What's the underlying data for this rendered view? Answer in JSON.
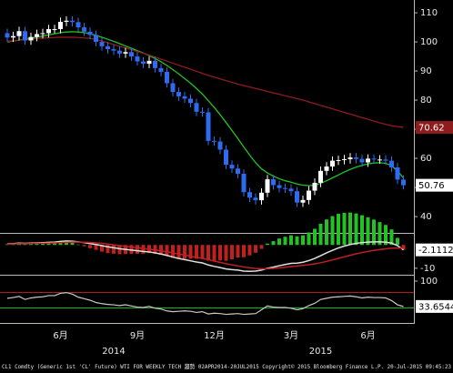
{
  "chart_data": [
    {
      "type": "candlestick",
      "categories": [
        null,
        null,
        null,
        null,
        null,
        null,
        null,
        null,
        null,
        "6月",
        null,
        null,
        null,
        null,
        null,
        null,
        null,
        null,
        null,
        null,
        null,
        null,
        "9月",
        null,
        null,
        null,
        null,
        null,
        null,
        null,
        null,
        null,
        null,
        null,
        null,
        "12月",
        null,
        null,
        null,
        null,
        null,
        null,
        null,
        null,
        null,
        null,
        null,
        null,
        "3月",
        null,
        null,
        null,
        null,
        null,
        null,
        null,
        null,
        null,
        null,
        null,
        null,
        "6月",
        null,
        null,
        null,
        null,
        null,
        null
      ],
      "categories2": [
        null,
        null,
        null,
        null,
        null,
        null,
        null,
        null,
        null,
        null,
        null,
        null,
        null,
        null,
        null,
        null,
        null,
        null,
        "2014",
        null,
        null,
        null,
        null,
        null,
        null,
        null,
        null,
        null,
        null,
        null,
        null,
        null,
        null,
        null,
        null,
        null,
        null,
        null,
        null,
        null,
        null,
        null,
        null,
        null,
        null,
        null,
        null,
        null,
        null,
        null,
        null,
        null,
        null,
        "2015",
        null,
        null,
        null,
        null,
        null,
        null,
        null,
        null,
        null,
        null,
        null,
        null,
        null,
        null
      ],
      "open": [
        103,
        101.5,
        102,
        103.7,
        100.5,
        101.7,
        102.7,
        103,
        104.4,
        104.4,
        106.9,
        107.3,
        106.8,
        105,
        103.5,
        102.4,
        100,
        98.5,
        97.5,
        97,
        96,
        96.5,
        95,
        93.3,
        92.5,
        93.5,
        91,
        89.7,
        85.8,
        82.8,
        81.3,
        80.5,
        79,
        76,
        75.8,
        66,
        65.8,
        63,
        57.8,
        56.5,
        54.7,
        48.4,
        46.5,
        45.6,
        48.2,
        52.8,
        50.8,
        49.8,
        49.6,
        48.7,
        44.8,
        45.7,
        48.9,
        51.6,
        55.7,
        57.2,
        59.2,
        59.4,
        59.7,
        60.3,
        59.8,
        58.6,
        59.9,
        59.6,
        59.6,
        59.2,
        56.9,
        52.7
      ],
      "high": [
        104.5,
        103.5,
        105.2,
        105.2,
        103.2,
        104.2,
        104.5,
        105.9,
        105.9,
        108.4,
        108.8,
        108.8,
        108.3,
        106.5,
        105,
        103.9,
        101.5,
        100,
        99,
        98.5,
        98,
        98,
        96.5,
        94.8,
        95,
        95,
        92.5,
        91.2,
        87.3,
        84.3,
        82.8,
        82,
        80.5,
        77.5,
        77.3,
        67.5,
        67.3,
        64.5,
        59.3,
        58,
        56.2,
        49.9,
        48,
        49.7,
        54.3,
        54.3,
        52.3,
        51.3,
        51.1,
        50.2,
        47.2,
        50.4,
        53.1,
        57.2,
        58.7,
        60.7,
        60.9,
        61.2,
        61.8,
        61.8,
        61.3,
        61.4,
        61.4,
        61.1,
        61.1,
        60.7,
        58.4,
        54.2
      ],
      "low": [
        100,
        100,
        100.5,
        99,
        99,
        100.2,
        101.2,
        101.5,
        102.9,
        102.9,
        105.4,
        105.3,
        103.5,
        102,
        100.9,
        98.5,
        97,
        96,
        95.5,
        94.5,
        94.5,
        93.5,
        91.8,
        91,
        91,
        89.5,
        88.2,
        84.3,
        81.3,
        79.8,
        79,
        77.5,
        74.5,
        74.3,
        64.5,
        64.3,
        61.5,
        56.3,
        55,
        53.2,
        46.9,
        45,
        44.1,
        44.1,
        46.7,
        49.3,
        48.3,
        48.1,
        47.2,
        43.3,
        43.3,
        44.2,
        47.4,
        50.1,
        54.2,
        55.7,
        57.7,
        57.9,
        58.2,
        58.3,
        57.1,
        57.1,
        58.1,
        58.1,
        57.7,
        55.4,
        51.2,
        49.3
      ],
      "close": [
        101.5,
        102,
        103.7,
        100.5,
        101.7,
        102.7,
        103,
        104.4,
        104.4,
        106.9,
        107.3,
        106.8,
        105,
        103.5,
        102.4,
        100,
        98.5,
        97.5,
        97,
        96,
        96.5,
        95,
        93.3,
        92.5,
        93.5,
        91,
        89.7,
        85.8,
        82.8,
        81.3,
        80.5,
        79,
        76,
        75.8,
        66,
        65.8,
        63,
        57.8,
        56.5,
        54.7,
        48.4,
        46.5,
        45.6,
        48.2,
        52.8,
        50.8,
        49.8,
        49.6,
        48.7,
        44.8,
        45.7,
        48.9,
        51.6,
        55.7,
        57.2,
        59.2,
        59.4,
        59.7,
        60.3,
        59.8,
        58.6,
        59.9,
        59.6,
        59.6,
        59.2,
        56.9,
        52.7,
        50.76
      ],
      "up_color": "#ffffff",
      "down_color": "#2b6cf0",
      "series": [
        {
          "color": "#22c322",
          "values": [
            100,
            100.3,
            100.6,
            101,
            101.3,
            101.7,
            102,
            102.4,
            102.8,
            103.2,
            103.4,
            103.5,
            103.4,
            103.2,
            102.8,
            102.3,
            101.6,
            100.9,
            100.2,
            99.4,
            98.6,
            97.8,
            97,
            96.2,
            95.3,
            94.3,
            93.2,
            91.9,
            90.5,
            89,
            87.4,
            85.8,
            84,
            82.1,
            79.8,
            77.5,
            75,
            72.3,
            69.6,
            66.8,
            63.9,
            61.1,
            58.5,
            56.4,
            55,
            53.9,
            53,
            52.3,
            51.8,
            51.2,
            50.8,
            50.6,
            50.8,
            51.4,
            52.3,
            53.3,
            54.3,
            55.3,
            56.2,
            57,
            57.6,
            58.1,
            58.4,
            58.5,
            58.3,
            57.5,
            55.6,
            53.3
          ]
        },
        {
          "color": "#8e1c1c",
          "values": [
            100.2,
            100.4,
            100.6,
            100.8,
            101,
            101.2,
            101.3,
            101.4,
            101.5,
            101.6,
            101.6,
            101.6,
            101.5,
            101.4,
            101.2,
            100.8,
            100.3,
            99.7,
            99.1,
            98.5,
            97.9,
            97.3,
            96.7,
            96.1,
            95.5,
            94.8,
            94.1,
            93.4,
            92.7,
            92,
            91.3,
            90.6,
            89.9,
            89.2,
            88.5,
            87.9,
            87.3,
            86.7,
            86.1,
            85.5,
            85,
            84.5,
            84,
            83.5,
            83,
            82.5,
            82,
            81.5,
            81,
            80.5,
            80,
            79.4,
            78.8,
            78.2,
            77.6,
            77,
            76.4,
            75.8,
            75.2,
            74.6,
            74,
            73.4,
            72.8,
            72.2,
            71.7,
            71.2,
            70.9,
            70.62
          ]
        }
      ],
      "ylim": [
        34.7,
        114.4
      ],
      "yticks": [
        40,
        50,
        60,
        70,
        80,
        90,
        100,
        110
      ]
    },
    {
      "type": "macd",
      "series": [
        {
          "color": "#e0e0e0",
          "values": [
            0.5,
            0.6,
            0.8,
            0.7,
            0.8,
            0.9,
            1,
            1.1,
            1.2,
            1.5,
            1.7,
            1.6,
            1.3,
            1,
            0.6,
            0.2,
            -0.3,
            -0.8,
            -1.2,
            -1.6,
            -1.9,
            -2.2,
            -2.5,
            -2.8,
            -3,
            -3.4,
            -3.9,
            -4.5,
            -5.2,
            -5.8,
            -6.3,
            -6.8,
            -7.3,
            -7.7,
            -8.6,
            -9.2,
            -9.7,
            -10.3,
            -10.6,
            -10.8,
            -11.2,
            -11.3,
            -11.2,
            -10.8,
            -10,
            -9.5,
            -8.9,
            -8.4,
            -7.9,
            -7.8,
            -7.4,
            -6.7,
            -5.8,
            -4.6,
            -3.4,
            -2.3,
            -1.3,
            -0.5,
            0.2,
            0.7,
            1,
            1.2,
            1.3,
            1.3,
            1.2,
            0.8,
            -0.3,
            -2.1112
          ]
        },
        {
          "color": "#c02020",
          "values": [
            0.4,
            0.45,
            0.52,
            0.56,
            0.6,
            0.66,
            0.73,
            0.8,
            0.88,
            1,
            1.14,
            1.23,
            1.24,
            1.19,
            1.07,
            0.9,
            0.66,
            0.37,
            0.05,
            -0.28,
            -0.6,
            -0.92,
            -1.24,
            -1.55,
            -1.84,
            -2.15,
            -2.5,
            -2.9,
            -3.36,
            -3.84,
            -4.33,
            -4.82,
            -5.32,
            -5.79,
            -6.35,
            -6.92,
            -7.48,
            -8.04,
            -8.55,
            -9,
            -9.44,
            -9.81,
            -10.09,
            -10.24,
            -10.19,
            -10.04,
            -9.82,
            -9.57,
            -9.29,
            -9.03,
            -8.78,
            -8.49,
            -8.11,
            -7.63,
            -7.05,
            -6.42,
            -5.75,
            -5.1,
            -4.44,
            -3.81,
            -3.25,
            -2.76,
            -2.33,
            -1.97,
            -1.66,
            -1.42,
            -1.31,
            -1.4
          ]
        }
      ],
      "up_color": "#22c322",
      "down_color": "#c02020",
      "ylim": [
        -12,
        4
      ],
      "yticks": [
        -10
      ]
    },
    {
      "type": "rsi",
      "series": [
        {
          "color": "#c8c8c8",
          "values": [
            55,
            57,
            60,
            52,
            56,
            58,
            59,
            62,
            62,
            68,
            70,
            66,
            58,
            54,
            50,
            44,
            41,
            39,
            38,
            36,
            38,
            35,
            32,
            31,
            34,
            29,
            27,
            22,
            20,
            21,
            22,
            21,
            18,
            20,
            14,
            16,
            15,
            13,
            14,
            15,
            13,
            14,
            15,
            25,
            35,
            32,
            31,
            31,
            29,
            25,
            28,
            36,
            42,
            52,
            55,
            58,
            59,
            60,
            61,
            59,
            56,
            58,
            57,
            57,
            56,
            49,
            38,
            33.6544
          ]
        }
      ],
      "levels": [
        {
          "value": 70,
          "color": "#c02020"
        },
        {
          "value": 30,
          "color": "#22c322"
        }
      ],
      "ylim": [
        0,
        100
      ],
      "yticks": [
        100
      ]
    }
  ],
  "footer": "CL1 Comdty (Generic 1st 'CL' Future) WTI FOR WEEKLY TECH 趨勢 02APR2014-20JUL2015 Copyright© 2015 Bloomberg Finance L.P. 20-Jul-2015 09:45:23"
}
